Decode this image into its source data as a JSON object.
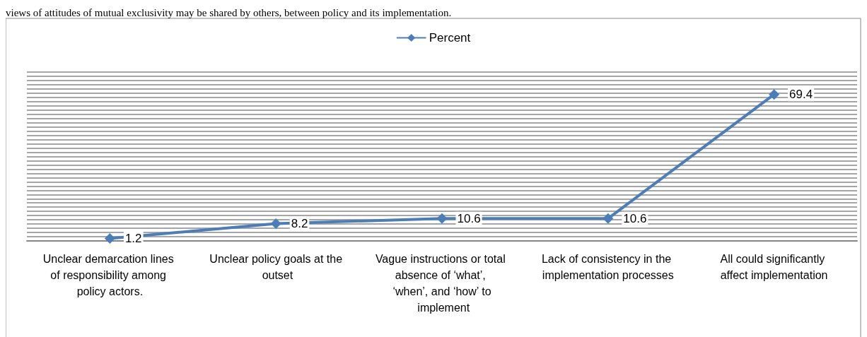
{
  "chart_data": {
    "type": "line",
    "annotations": [
      "views of attitudes of mutual exclusivity may be shared by others, between policy and its implementation."
    ],
    "categories": [
      "Unclear demarcation lines of responsibility among policy actors.",
      "Unclear policy goals at the outset",
      "Vague instructions or total absence of ‘what’, ‘when’, and ‘how’ to implement",
      "Lack of consistency in the implementation processes",
      "All could significantly affect implementation"
    ],
    "series": [
      {
        "name": "Percent",
        "color": "#4a7ebb",
        "values": [
          1.2,
          8.2,
          10.6,
          10.6,
          69.4
        ]
      }
    ],
    "ylim": [
      0,
      80
    ],
    "yticks": [
      {
        "value": 0,
        "label": null
      },
      {
        "value": 2,
        "label": null
      },
      {
        "value": 4,
        "label": null
      },
      {
        "value": 6,
        "label": null
      },
      {
        "value": 8,
        "label": null
      },
      {
        "value": 10,
        "label": null
      },
      {
        "value": 12,
        "label": null
      },
      {
        "value": 14,
        "label": null
      },
      {
        "value": 16,
        "label": null
      },
      {
        "value": 18,
        "label": null
      },
      {
        "value": 20,
        "label": null
      },
      {
        "value": 22,
        "label": null
      },
      {
        "value": 24,
        "label": null
      },
      {
        "value": 26,
        "label": null
      },
      {
        "value": 28,
        "label": null
      },
      {
        "value": 30,
        "label": null
      },
      {
        "value": 32,
        "label": null
      },
      {
        "value": 34,
        "label": null
      },
      {
        "value": 36,
        "label": null
      },
      {
        "value": 38,
        "label": null
      },
      {
        "value": 40,
        "label": null
      },
      {
        "value": 42,
        "label": null
      },
      {
        "value": 44,
        "label": null
      },
      {
        "value": 46,
        "label": null
      },
      {
        "value": 48,
        "label": null
      },
      {
        "value": 50,
        "label": null
      },
      {
        "value": 52,
        "label": null
      },
      {
        "value": 54,
        "label": null
      },
      {
        "value": 56,
        "label": null
      },
      {
        "value": 58,
        "label": null
      },
      {
        "value": 60,
        "label": null
      },
      {
        "value": 62,
        "label": null
      },
      {
        "value": 64,
        "label": null
      },
      {
        "value": 66,
        "label": null
      },
      {
        "value": 68,
        "label": null
      },
      {
        "value": 70,
        "label": null
      },
      {
        "value": 72,
        "label": null
      },
      {
        "value": 74,
        "label": null
      },
      {
        "value": 76,
        "label": null
      },
      {
        "value": 78,
        "label": null
      },
      {
        "value": 80,
        "label": null
      }
    ],
    "tick_labels": "x",
    "grid": "y",
    "legend": "top",
    "marker": "diamond",
    "line_style": "solid",
    "data_labels": true
  }
}
